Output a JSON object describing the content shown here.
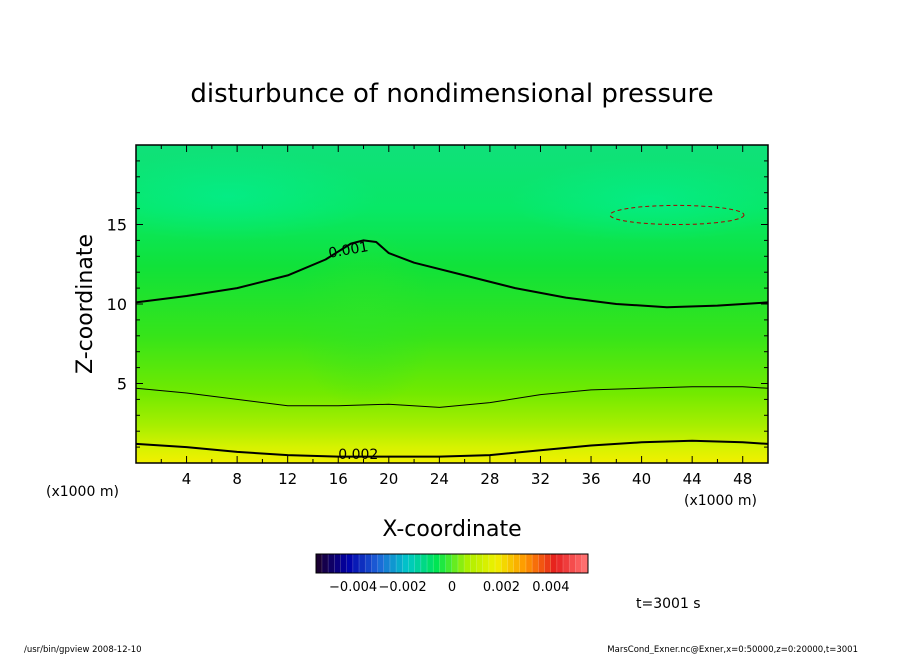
{
  "chart_data": {
    "type": "heatmap",
    "title": "disturbunce of nondimensional pressure",
    "xlabel": "X-coordinate",
    "ylabel": "Z-coordinate",
    "x_unit_left": "(x1000 m)",
    "x_unit_right": "(x1000 m)",
    "xlim": [
      0,
      50
    ],
    "ylim": [
      0,
      20
    ],
    "x_ticks": [
      4,
      8,
      12,
      16,
      20,
      24,
      28,
      32,
      36,
      40,
      44,
      48
    ],
    "y_ticks": [
      5,
      10,
      15
    ],
    "contours": [
      {
        "label": "0.001",
        "style": "solid",
        "weight": "thick",
        "points": [
          [
            0,
            10.1
          ],
          [
            4,
            10.5
          ],
          [
            8,
            11.0
          ],
          [
            12,
            11.8
          ],
          [
            15,
            12.8
          ],
          [
            17,
            13.8
          ],
          [
            18,
            14.0
          ],
          [
            19,
            13.9
          ],
          [
            20,
            13.2
          ],
          [
            22,
            12.6
          ],
          [
            26,
            11.8
          ],
          [
            30,
            11.0
          ],
          [
            34,
            10.4
          ],
          [
            38,
            10.0
          ],
          [
            42,
            9.8
          ],
          [
            46,
            9.9
          ],
          [
            50,
            10.1
          ]
        ]
      },
      {
        "label": "",
        "style": "solid",
        "weight": "thin",
        "points": [
          [
            0,
            4.7
          ],
          [
            4,
            4.4
          ],
          [
            8,
            4.0
          ],
          [
            12,
            3.6
          ],
          [
            16,
            3.6
          ],
          [
            20,
            3.7
          ],
          [
            24,
            3.5
          ],
          [
            28,
            3.8
          ],
          [
            32,
            4.3
          ],
          [
            36,
            4.6
          ],
          [
            40,
            4.7
          ],
          [
            44,
            4.8
          ],
          [
            48,
            4.8
          ],
          [
            50,
            4.7
          ]
        ]
      },
      {
        "label": "0.002",
        "style": "solid",
        "weight": "thick",
        "points": [
          [
            0,
            1.2
          ],
          [
            4,
            1.0
          ],
          [
            8,
            0.7
          ],
          [
            12,
            0.5
          ],
          [
            16,
            0.4
          ],
          [
            20,
            0.4
          ],
          [
            24,
            0.4
          ],
          [
            28,
            0.5
          ],
          [
            32,
            0.8
          ],
          [
            36,
            1.1
          ],
          [
            40,
            1.3
          ],
          [
            44,
            1.4
          ],
          [
            48,
            1.3
          ],
          [
            50,
            1.2
          ]
        ]
      },
      {
        "label": "",
        "style": "dashed",
        "weight": "thin",
        "ellipse": {
          "cx": 42.8,
          "cz": 15.6,
          "rx": 5.3,
          "rz": 0.6
        }
      }
    ],
    "colorbar": {
      "tick_labels": [
        "−0.004",
        "−0.002",
        "0",
        "0.002",
        "0.004"
      ],
      "range": [
        -0.0055,
        0.0055
      ],
      "colors": [
        "#1a0033",
        "#0000aa",
        "#1e64d8",
        "#00c8c8",
        "#00e650",
        "#a8f000",
        "#f0f000",
        "#ff9600",
        "#e61e1e",
        "#ff6e6e"
      ]
    },
    "time_label": "t=3001 s"
  },
  "footer": {
    "left": "/usr/bin/gpview   2008-12-10",
    "right": "MarsCond_Exner.nc@Exner,x=0:50000,z=0:20000,t=3001"
  }
}
